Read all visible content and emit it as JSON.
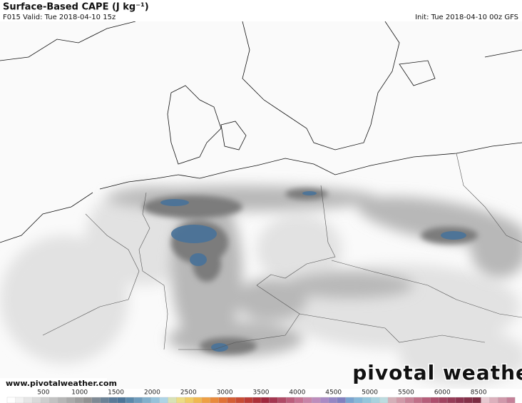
{
  "header": {
    "title": "Surface-Based CAPE (J kg⁻¹)",
    "valid": "F015 Valid: Tue 2018-04-10 15z",
    "init": "Init: Tue 2018-04-10 00z GFS"
  },
  "footer": {
    "url": "www.pivotalweather.com",
    "logo": "pivotal weather"
  },
  "colorbar": {
    "labels": [
      "500",
      "1000",
      "1500",
      "2000",
      "2500",
      "3000",
      "3500",
      "4000",
      "4500",
      "5000",
      "5500",
      "6000",
      "8500"
    ]
  }
}
